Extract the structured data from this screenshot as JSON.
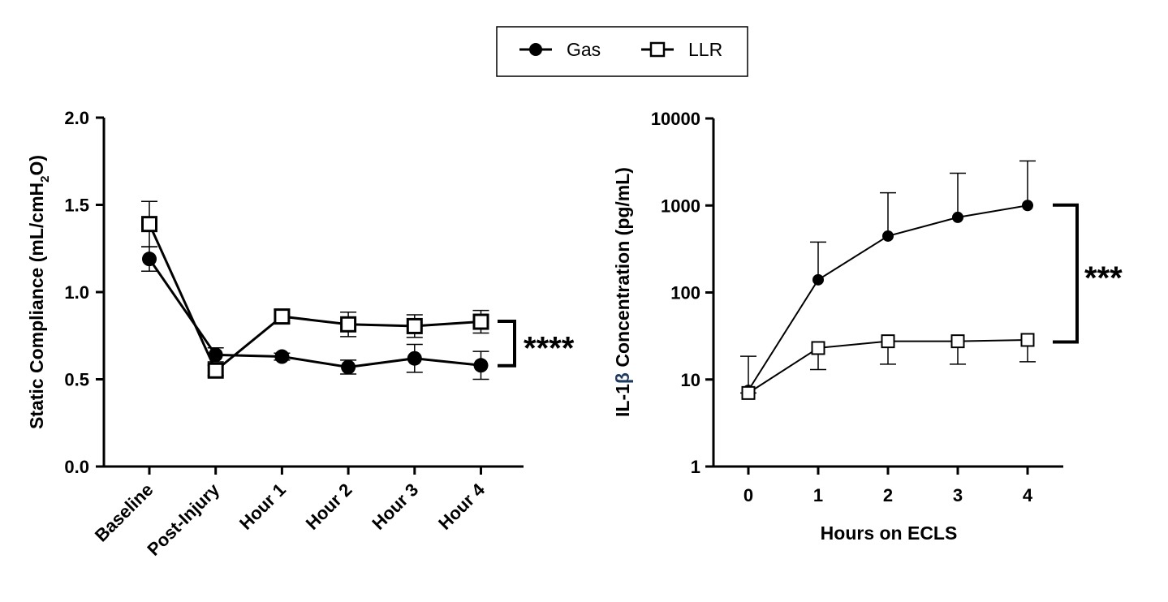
{
  "legend": {
    "gas": "Gas",
    "llr": "LLR"
  },
  "colors": {
    "line": "#000000",
    "accent": "#1f3a5f"
  },
  "chart_data": [
    {
      "type": "line",
      "title": "",
      "categories": [
        "Baseline",
        "Post-Injury",
        "Hour 1",
        "Hour 2",
        "Hour 3",
        "Hour 4"
      ],
      "ylabel": "Static Compliance (mL/cmH2O)",
      "ylabel_parts": {
        "main": "Static Compliance (mL/cmH",
        "sub": "2",
        "end": "O)"
      },
      "xlabel": "",
      "ylim": [
        0,
        2.0
      ],
      "yticks": [
        "0.0",
        "0.5",
        "1.0",
        "1.5",
        "2.0"
      ],
      "series": [
        {
          "name": "Gas",
          "marker": "circle",
          "values": [
            1.19,
            0.64,
            0.63,
            0.57,
            0.62,
            0.58
          ],
          "err": [
            0.07,
            0.04,
            0.02,
            0.04,
            0.08,
            0.08
          ]
        },
        {
          "name": "LLR",
          "marker": "square",
          "values": [
            1.39,
            0.55,
            0.86,
            0.815,
            0.805,
            0.83
          ],
          "err": [
            0.13,
            0.03,
            0.04,
            0.07,
            0.065,
            0.065
          ]
        }
      ],
      "significance": "****"
    },
    {
      "type": "line",
      "title": "",
      "x": [
        0,
        1,
        2,
        3,
        4
      ],
      "xticks": [
        "0",
        "1",
        "2",
        "3",
        "4"
      ],
      "xlabel": "Hours on ECLS",
      "ylabel": "IL-1β Concentration (pg/mL)",
      "ylabel_parts": {
        "pre": "IL-1",
        "beta": "β",
        "post": " Concentration (pg/mL)"
      },
      "yscale": "log",
      "ylim": [
        1,
        10000
      ],
      "yticks": [
        "1",
        "10",
        "100",
        "1000",
        "10000"
      ],
      "series": [
        {
          "name": "Gas",
          "marker": "circle",
          "values": [
            7.5,
            140,
            445,
            730,
            1000
          ],
          "err_upper": [
            18.5,
            380,
            1400,
            2350,
            3250
          ]
        },
        {
          "name": "LLR",
          "marker": "square",
          "values": [
            7,
            23,
            27.5,
            27.5,
            28.5
          ],
          "err_lower": [
            7,
            13,
            15,
            15,
            16
          ]
        }
      ],
      "significance": "***"
    }
  ]
}
